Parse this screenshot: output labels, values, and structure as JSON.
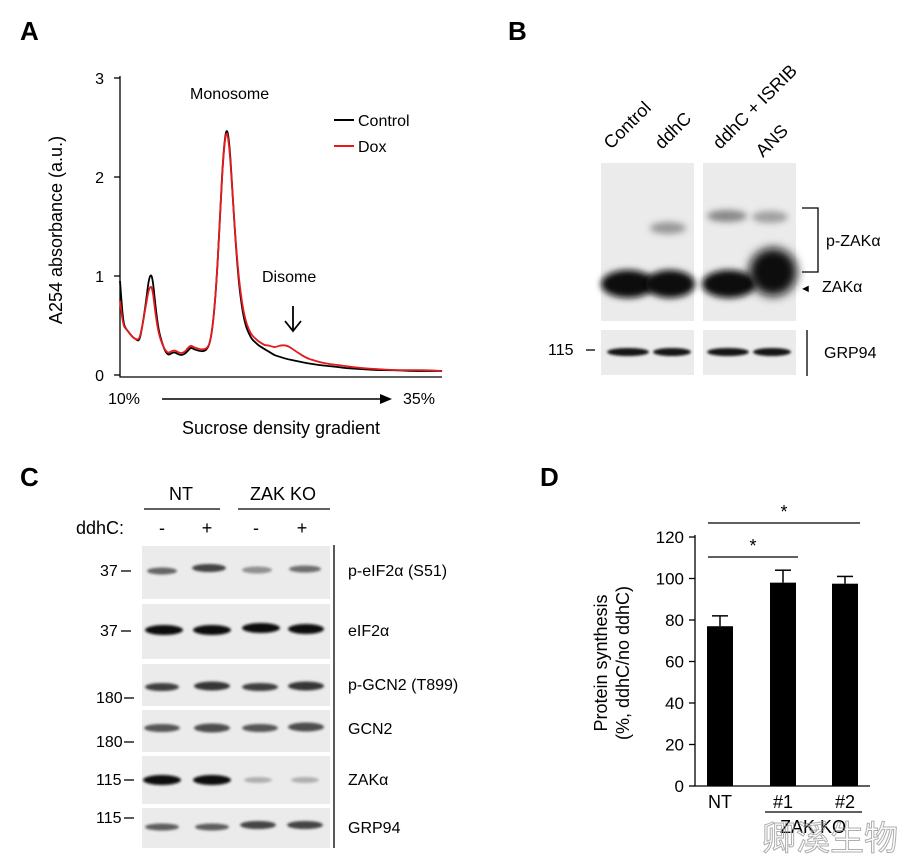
{
  "panel_letters": {
    "A": "A",
    "B": "B",
    "C": "C",
    "D": "D"
  },
  "colors": {
    "control": "#000000",
    "dox": "#e41a1c",
    "bar": "#000000"
  },
  "watermark": "卿溪生物",
  "chart_data": [
    {
      "type": "line",
      "panel": "A",
      "xlabel": "Sucrose density gradient",
      "ylabel": "A254 absorbance (a.u.)",
      "ylim": [
        0,
        3
      ],
      "yticks": [
        "0",
        "1",
        "2",
        "3"
      ],
      "x_start_label": "10%",
      "x_end_label": "35%",
      "annotations": {
        "monosome": "Monosome",
        "disome": "Disome"
      },
      "legend": [
        "Control",
        "Dox"
      ],
      "legend_position": "top-right",
      "x": [
        0,
        1,
        2,
        3,
        4,
        5,
        6,
        7,
        8,
        9,
        10,
        11,
        12,
        13,
        14,
        15,
        16,
        17,
        18,
        19,
        20,
        21,
        22,
        23,
        24,
        25,
        26,
        27,
        28,
        29,
        30,
        31,
        32,
        33,
        34,
        35,
        36,
        37,
        38,
        39,
        40,
        41,
        42,
        43,
        44,
        45,
        46,
        47,
        48,
        49,
        50,
        52,
        55,
        58,
        60,
        62,
        65,
        68,
        70,
        75,
        80,
        85,
        90,
        95,
        100
      ],
      "series": [
        {
          "name": "Control",
          "values": [
            0.95,
            0.52,
            0.46,
            0.42,
            0.38,
            0.36,
            0.34,
            0.5,
            0.72,
            0.99,
            1.02,
            0.7,
            0.45,
            0.33,
            0.24,
            0.2,
            0.22,
            0.23,
            0.21,
            0.2,
            0.21,
            0.24,
            0.28,
            0.26,
            0.25,
            0.24,
            0.24,
            0.26,
            0.33,
            0.55,
            0.95,
            1.55,
            2.2,
            2.52,
            2.35,
            1.8,
            1.3,
            0.9,
            0.65,
            0.5,
            0.42,
            0.36,
            0.33,
            0.3,
            0.28,
            0.26,
            0.24,
            0.22,
            0.2,
            0.19,
            0.18,
            0.16,
            0.14,
            0.12,
            0.11,
            0.1,
            0.09,
            0.08,
            0.07,
            0.06,
            0.05,
            0.05,
            0.04,
            0.04,
            0.04
          ]
        },
        {
          "name": "Dox",
          "values": [
            0.75,
            0.5,
            0.46,
            0.42,
            0.38,
            0.36,
            0.36,
            0.5,
            0.7,
            0.88,
            0.9,
            0.62,
            0.42,
            0.32,
            0.25,
            0.22,
            0.24,
            0.25,
            0.23,
            0.22,
            0.23,
            0.27,
            0.3,
            0.28,
            0.27,
            0.26,
            0.26,
            0.27,
            0.33,
            0.55,
            0.95,
            1.55,
            2.18,
            2.5,
            2.3,
            1.8,
            1.32,
            0.95,
            0.7,
            0.55,
            0.46,
            0.4,
            0.37,
            0.34,
            0.32,
            0.3,
            0.3,
            0.29,
            0.28,
            0.29,
            0.3,
            0.3,
            0.23,
            0.17,
            0.15,
            0.13,
            0.11,
            0.1,
            0.09,
            0.07,
            0.06,
            0.05,
            0.05,
            0.05,
            0.04
          ]
        }
      ]
    },
    {
      "type": "bar",
      "panel": "D",
      "title": "",
      "ylabel": "Protein synthesis (%, ddhC/no ddhC)",
      "ylabel_line1": "Protein synthesis",
      "ylabel_line2": "(%, ddhC/no ddhC)",
      "categories": [
        "NT",
        "#1",
        "#2"
      ],
      "group_label": "ZAK KO",
      "values": [
        77,
        98,
        97.5
      ],
      "errors": [
        5,
        6,
        3.5
      ],
      "ylim": [
        0,
        120
      ],
      "yticks": [
        "0",
        "20",
        "40",
        "60",
        "80",
        "100",
        "120"
      ],
      "significance": [
        {
          "from": "NT",
          "to": "#1",
          "label": "*"
        },
        {
          "from": "NT",
          "to": "#2",
          "label": "*"
        }
      ]
    }
  ],
  "panel_b": {
    "lanes": [
      "Control",
      "ddhC",
      "ddhC + ISRIB",
      "ANS"
    ],
    "labels": {
      "p_zak": "p-ZAKα",
      "zak": "ZAKα",
      "grp94": "GRP94",
      "arrow": "◄"
    },
    "marker": "115"
  },
  "panel_c": {
    "groups": [
      "NT",
      "ZAK KO"
    ],
    "treatment_label": "ddhC:",
    "treatments": [
      "-",
      "+",
      "-",
      "+"
    ],
    "rows": [
      {
        "label": "p-eIF2α (S51)",
        "marker": "37"
      },
      {
        "label": "eIF2α",
        "marker": "37"
      },
      {
        "label": "p-GCN2 (T899)",
        "marker": "180"
      },
      {
        "label": "GCN2",
        "marker": "180"
      },
      {
        "label": "ZAKα",
        "marker": "115"
      },
      {
        "label": "GRP94",
        "marker": "115"
      }
    ]
  }
}
